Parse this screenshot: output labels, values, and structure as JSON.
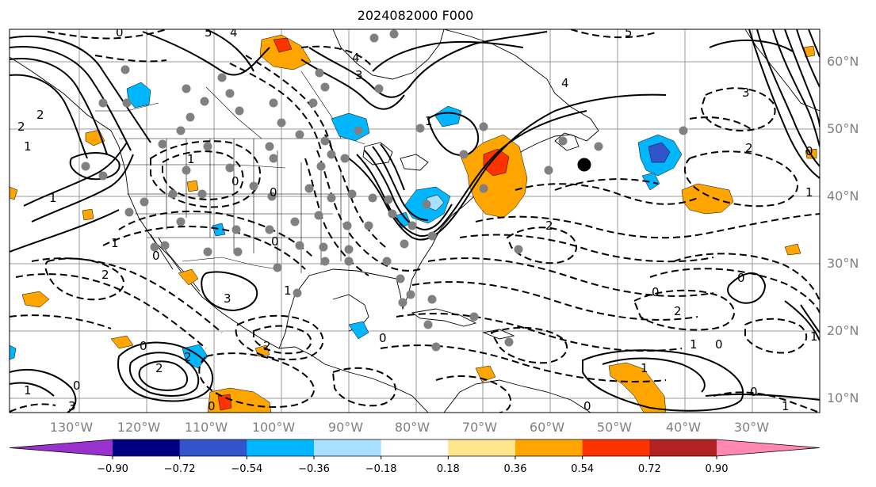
{
  "title": "2024082000 F000",
  "lon_labels": [
    "130°W",
    "120°W",
    "110°W",
    "100°W",
    "90°W",
    "80°W",
    "70°W",
    "60°W",
    "50°W",
    "40°W",
    "30°W"
  ],
  "lat_labels": [
    "60°N",
    "50°N",
    "40°N",
    "30°N",
    "20°N",
    "10°N"
  ],
  "colorbar": {
    "ticks": [
      "−0.90",
      "−0.72",
      "−0.54",
      "−0.36",
      "−0.18",
      "0.18",
      "0.36",
      "0.54",
      "0.72",
      "0.90"
    ],
    "colors": [
      "#9932cc",
      "#000080",
      "#3355cc",
      "#00b7ff",
      "#a8e0ff",
      "#ffffff",
      "#ffe58c",
      "#ffa500",
      "#ff3300",
      "#b22222",
      "#ff88b0"
    ]
  },
  "contour_labels": [
    "5",
    "4",
    "0",
    "4",
    "3",
    "4",
    "5",
    "2",
    "1",
    "2",
    "1",
    "0",
    "0",
    "0",
    "1",
    "2",
    "0",
    "3",
    "1",
    "0",
    "0",
    "2",
    "1",
    "2",
    "2",
    "3",
    "2",
    "0",
    "0",
    "1",
    "3",
    "1",
    "2",
    "0",
    "0",
    "1",
    "0",
    "1",
    "1",
    "0",
    "0",
    "1",
    "0",
    "2",
    "1"
  ]
}
